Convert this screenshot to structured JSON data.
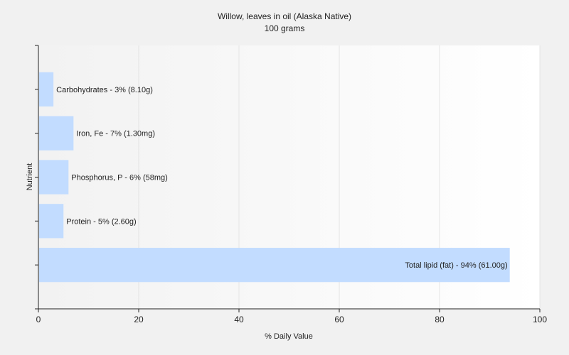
{
  "chart_data": {
    "type": "bar",
    "orientation": "horizontal",
    "title": "Willow, leaves in oil (Alaska Native)",
    "subtitle": "100 grams",
    "xlabel": "% Daily Value",
    "ylabel": "Nutrient",
    "xlim": [
      0,
      100
    ],
    "xticks": [
      0,
      20,
      40,
      60,
      80,
      100
    ],
    "grid": true,
    "bar_color": "#c2dcff",
    "categories": [
      "Carbohydrates",
      "Iron, Fe",
      "Phosphorus, P",
      "Protein",
      "Total lipid (fat)"
    ],
    "values": [
      3,
      7,
      6,
      5,
      94
    ],
    "labels": [
      "Carbohydrates - 3% (8.10g)",
      "Iron, Fe - 7% (1.30mg)",
      "Phosphorus, P - 6% (58mg)",
      "Protein - 5% (2.60g)",
      "Total lipid (fat) - 94% (61.00g)"
    ]
  }
}
